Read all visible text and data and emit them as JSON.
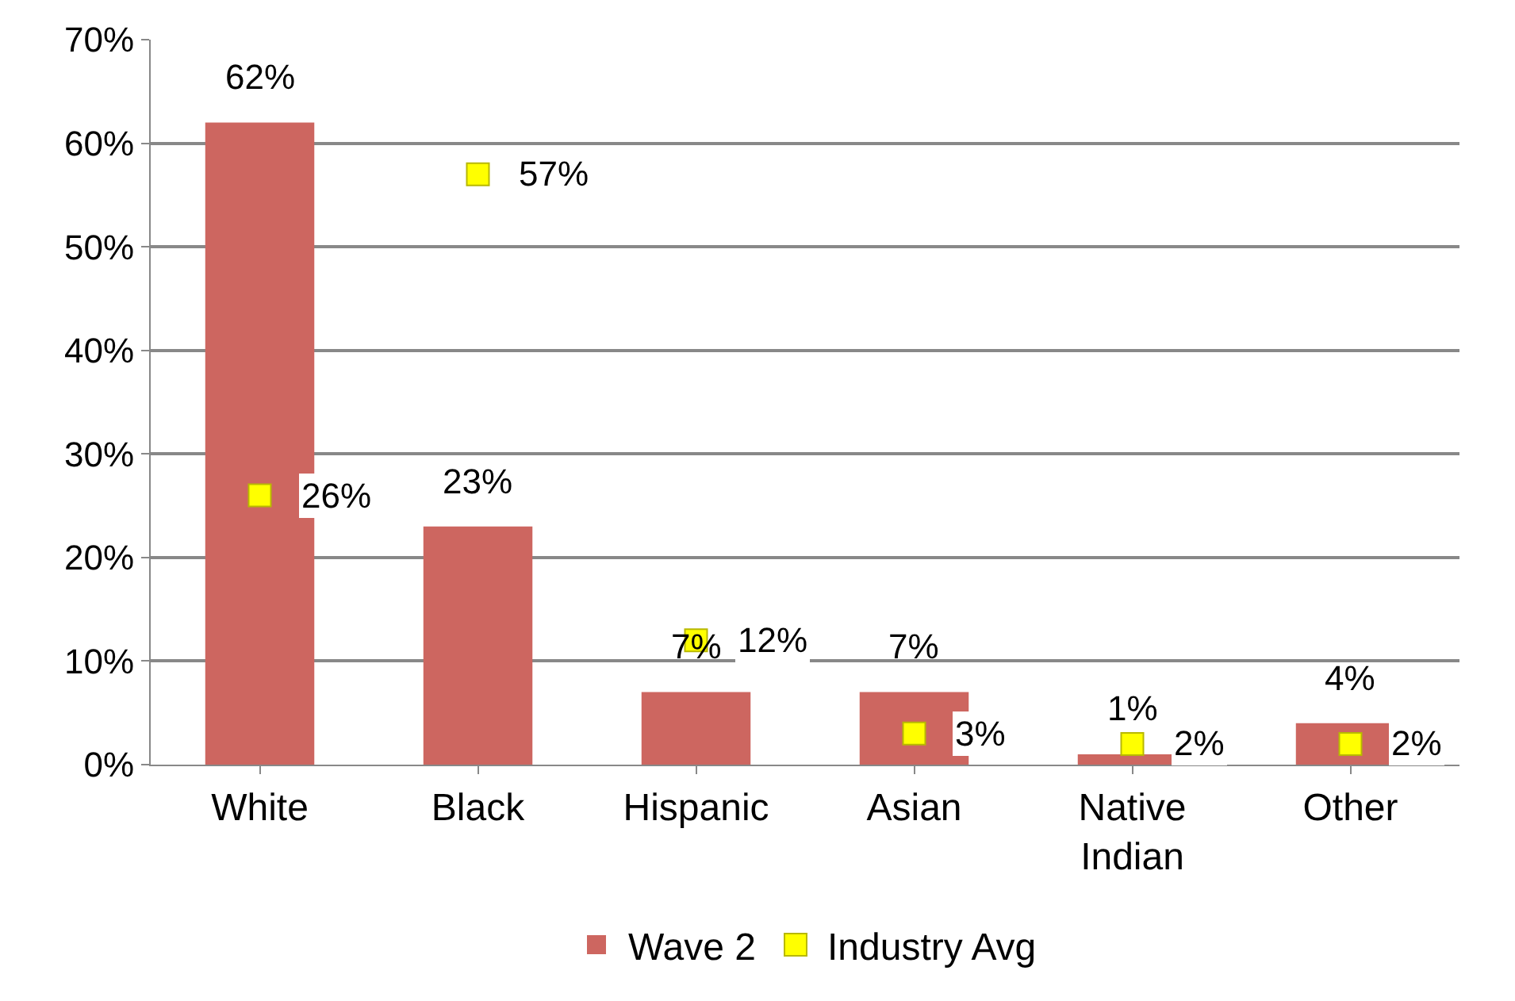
{
  "chart_data": {
    "type": "bar",
    "categories": [
      "White",
      "Black",
      "Hispanic",
      "Asian",
      "Native Indian",
      "Other"
    ],
    "series": [
      {
        "name": "Wave 2",
        "color": "#cd6660",
        "values": [
          62,
          23,
          7,
          7,
          1,
          4
        ],
        "value_labels": [
          "62%",
          "23%",
          "7%",
          "7%",
          "1%",
          "4%"
        ]
      },
      {
        "name": "Industry Avg",
        "type": "scatter",
        "color": "#ffff00",
        "values": [
          26,
          57,
          12,
          3,
          2,
          2
        ],
        "value_labels": [
          "26%",
          "57%",
          "12%",
          "3%",
          "2%",
          "2%"
        ]
      }
    ],
    "ylim": [
      0,
      70
    ],
    "yticks": [
      {
        "value": 0,
        "label": "0%"
      },
      {
        "value": 10,
        "label": "10%"
      },
      {
        "value": 20,
        "label": "20%"
      },
      {
        "value": 30,
        "label": "30%"
      },
      {
        "value": 40,
        "label": "40%"
      },
      {
        "value": 50,
        "label": "50%"
      },
      {
        "value": 60,
        "label": "60%"
      },
      {
        "value": 70,
        "label": "70%"
      }
    ],
    "grid": "y",
    "legend": "bottom"
  }
}
